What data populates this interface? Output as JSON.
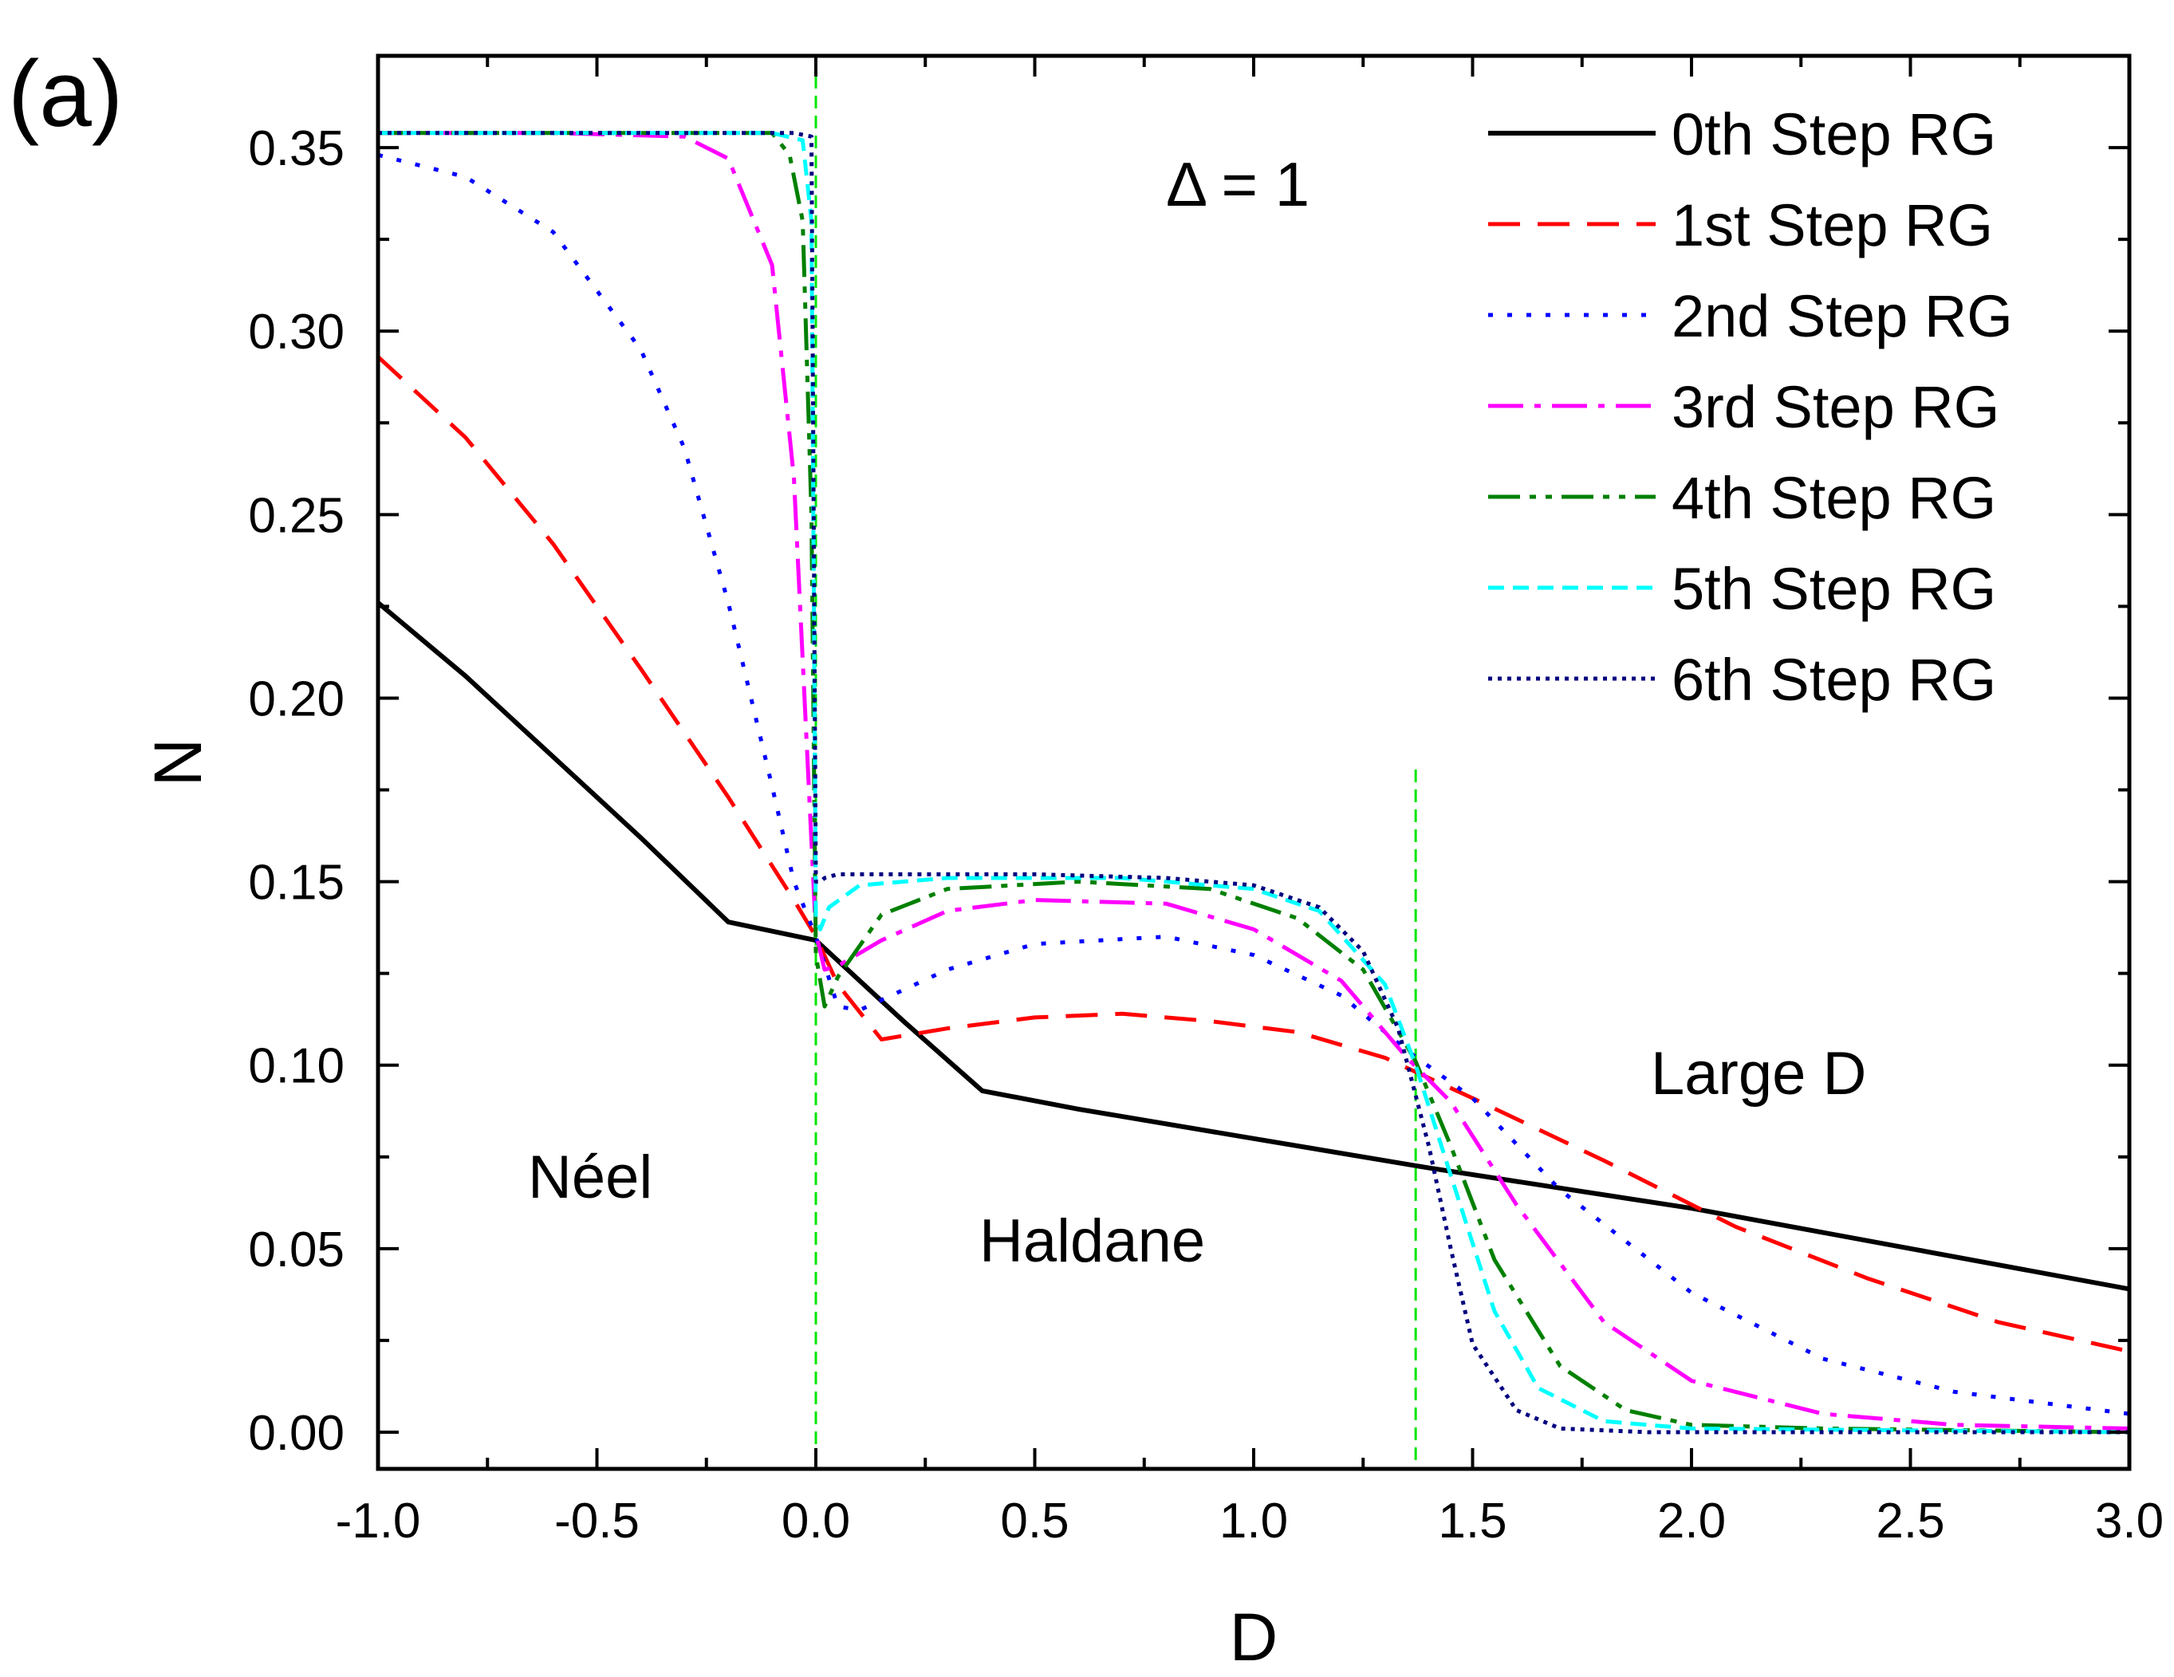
{
  "panel_label": "(a)",
  "delta_label": "Δ = 1",
  "region_labels": {
    "neel": "Néel",
    "haldane": "Haldane",
    "large_d": "Large D"
  },
  "chart_data": {
    "type": "line",
    "xlabel": "D",
    "ylabel": "N",
    "xlim": [
      -1.0,
      3.0
    ],
    "ylim": [
      -0.01,
      0.375
    ],
    "x_ticks": [
      "-1.0",
      "-0.5",
      "0.0",
      "0.5",
      "1.0",
      "1.5",
      "2.0",
      "2.5",
      "3.0"
    ],
    "y_ticks": [
      "0.00",
      "0.05",
      "0.10",
      "0.15",
      "0.20",
      "0.25",
      "0.30",
      "0.35"
    ],
    "vertical_markers": [
      0.0,
      1.37
    ],
    "legend_position": "top-right",
    "series": [
      {
        "name": "0th  Step RG",
        "color": "#000000",
        "dash": "solid",
        "x": [
          -1.0,
          -0.8,
          -0.6,
          -0.4,
          -0.2,
          0.0,
          0.2,
          0.38,
          0.6,
          1.0,
          1.4,
          2.0,
          2.5,
          3.0
        ],
        "y": [
          0.226,
          0.206,
          0.184,
          0.162,
          0.139,
          0.134,
          0.112,
          0.093,
          0.088,
          0.08,
          0.072,
          0.061,
          0.05,
          0.039
        ]
      },
      {
        "name": "1st  Step RG",
        "color": "#ff0000",
        "dash": "dashed",
        "x": [
          -1.0,
          -0.8,
          -0.6,
          -0.4,
          -0.2,
          -0.05,
          0.0,
          0.05,
          0.15,
          0.3,
          0.5,
          0.7,
          0.9,
          1.1,
          1.3,
          1.5,
          1.8,
          2.1,
          2.4,
          2.7,
          3.0
        ],
        "y": [
          0.293,
          0.271,
          0.242,
          0.208,
          0.173,
          0.145,
          0.135,
          0.122,
          0.107,
          0.11,
          0.113,
          0.114,
          0.112,
          0.109,
          0.102,
          0.091,
          0.074,
          0.056,
          0.042,
          0.03,
          0.022
        ]
      },
      {
        "name": "2nd Step RG",
        "color": "#0000ff",
        "dash": "dotted",
        "x": [
          -1.0,
          -0.8,
          -0.6,
          -0.4,
          -0.3,
          -0.2,
          -0.1,
          -0.05,
          0.0,
          0.05,
          0.1,
          0.3,
          0.5,
          0.8,
          1.0,
          1.2,
          1.35,
          1.5,
          1.7,
          2.0,
          2.3,
          2.6,
          3.0
        ],
        "y": [
          0.348,
          0.342,
          0.327,
          0.295,
          0.268,
          0.226,
          0.176,
          0.15,
          0.135,
          0.116,
          0.115,
          0.126,
          0.133,
          0.135,
          0.13,
          0.119,
          0.104,
          0.091,
          0.066,
          0.038,
          0.02,
          0.011,
          0.005
        ]
      },
      {
        "name": "3rd  Step RG",
        "color": "#ff00ff",
        "dash": "dashdot",
        "x": [
          -1.0,
          -0.6,
          -0.3,
          -0.2,
          -0.1,
          -0.05,
          0.0,
          0.02,
          0.05,
          0.15,
          0.3,
          0.5,
          0.8,
          1.0,
          1.2,
          1.35,
          1.45,
          1.6,
          1.8,
          2.0,
          2.3,
          2.6,
          3.0
        ],
        "y": [
          0.354,
          0.354,
          0.353,
          0.347,
          0.318,
          0.26,
          0.136,
          0.126,
          0.127,
          0.134,
          0.142,
          0.145,
          0.144,
          0.137,
          0.123,
          0.102,
          0.09,
          0.062,
          0.03,
          0.014,
          0.005,
          0.002,
          0.001
        ]
      },
      {
        "name": "4th  Step RG",
        "color": "#008000",
        "dash": "dashdotdot",
        "x": [
          -1.0,
          -0.3,
          -0.1,
          -0.06,
          -0.03,
          -0.01,
          0.0,
          0.02,
          0.05,
          0.15,
          0.3,
          0.6,
          0.9,
          1.1,
          1.25,
          1.37,
          1.45,
          1.55,
          1.7,
          1.85,
          2.0,
          2.3,
          3.0
        ],
        "y": [
          0.354,
          0.354,
          0.354,
          0.348,
          0.33,
          0.25,
          0.13,
          0.116,
          0.124,
          0.141,
          0.148,
          0.15,
          0.148,
          0.14,
          0.126,
          0.101,
          0.078,
          0.047,
          0.018,
          0.006,
          0.002,
          0.001,
          0.0
        ]
      },
      {
        "name": "5th  Step RG",
        "color": "#00ffff",
        "dash": "shortdash",
        "x": [
          -1.0,
          -0.1,
          -0.03,
          -0.01,
          0.0,
          0.01,
          0.03,
          0.1,
          0.3,
          0.7,
          1.0,
          1.15,
          1.3,
          1.37,
          1.45,
          1.55,
          1.65,
          1.8,
          2.0,
          3.0
        ],
        "y": [
          0.354,
          0.354,
          0.352,
          0.33,
          0.14,
          0.137,
          0.143,
          0.149,
          0.151,
          0.151,
          0.148,
          0.142,
          0.122,
          0.1,
          0.07,
          0.033,
          0.012,
          0.003,
          0.001,
          0.0
        ]
      },
      {
        "name": "6th  Step RG",
        "color": "#000080",
        "dash": "dense",
        "x": [
          -1.0,
          -0.05,
          -0.01,
          0.0,
          0.01,
          0.02,
          0.05,
          0.2,
          0.5,
          0.8,
          1.0,
          1.15,
          1.25,
          1.33,
          1.4,
          1.45,
          1.5,
          1.6,
          1.7,
          1.9,
          3.0
        ],
        "y": [
          0.354,
          0.354,
          0.353,
          0.15,
          0.15,
          0.151,
          0.152,
          0.152,
          0.152,
          0.151,
          0.149,
          0.143,
          0.131,
          0.11,
          0.078,
          0.05,
          0.024,
          0.006,
          0.001,
          0.0,
          0.0
        ]
      }
    ]
  }
}
